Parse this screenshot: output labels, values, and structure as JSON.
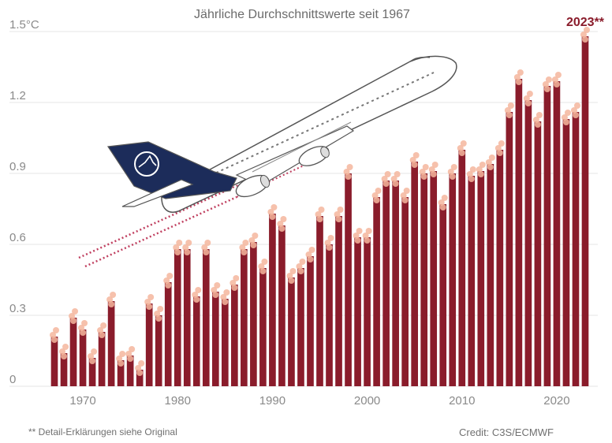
{
  "chart_data": {
    "type": "bar",
    "title": "Jährliche Durchschnittswerte seit 1967",
    "xlabel": "",
    "ylabel": "",
    "x": [
      1967,
      1968,
      1969,
      1970,
      1971,
      1972,
      1973,
      1974,
      1975,
      1976,
      1977,
      1978,
      1979,
      1980,
      1981,
      1982,
      1983,
      1984,
      1985,
      1986,
      1987,
      1988,
      1989,
      1990,
      1991,
      1992,
      1993,
      1994,
      1995,
      1996,
      1997,
      1998,
      1999,
      2000,
      2001,
      2002,
      2003,
      2004,
      2005,
      2006,
      2007,
      2008,
      2009,
      2010,
      2011,
      2012,
      2013,
      2014,
      2015,
      2016,
      2017,
      2018,
      2019,
      2020,
      2021,
      2022,
      2023
    ],
    "values": [
      0.21,
      0.14,
      0.29,
      0.24,
      0.12,
      0.23,
      0.36,
      0.11,
      0.13,
      0.07,
      0.35,
      0.3,
      0.44,
      0.58,
      0.58,
      0.38,
      0.58,
      0.4,
      0.37,
      0.43,
      0.58,
      0.61,
      0.5,
      0.73,
      0.68,
      0.46,
      0.5,
      0.55,
      0.72,
      0.6,
      0.72,
      0.9,
      0.63,
      0.63,
      0.8,
      0.87,
      0.87,
      0.8,
      0.95,
      0.9,
      0.91,
      0.77,
      0.9,
      1.0,
      0.89,
      0.91,
      0.94,
      1.0,
      1.16,
      1.3,
      1.21,
      1.12,
      1.27,
      1.29,
      1.13,
      1.16,
      1.48
    ],
    "ylim": [
      0,
      1.5
    ],
    "yticks": [
      "0",
      "0.3",
      "0.6",
      "0.9",
      "1.2",
      "1.5°C"
    ],
    "xticks": [
      1970,
      1980,
      1990,
      2000,
      2010,
      2020
    ],
    "grid": true,
    "annotations": [
      "2023**"
    ]
  },
  "footer": {
    "note": "** Detail-Erklärungen siehe Original",
    "credit": "Credit: C3S/ECMWF"
  },
  "colors": {
    "bar": "#8a1c2b",
    "dots": "#f4b69e",
    "airplane_tail": "#1c2c5a"
  },
  "icons": [
    "airplane-illustration"
  ]
}
